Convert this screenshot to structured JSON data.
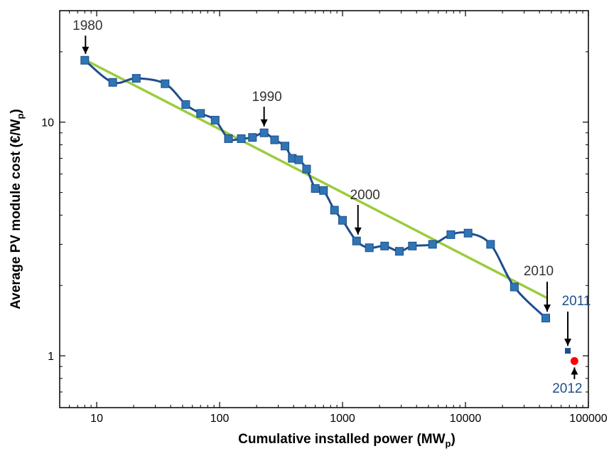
{
  "chart_data": {
    "type": "line",
    "title": "",
    "xlabel": {
      "main": "Cumulative installed power (MW",
      "sub": "p",
      "end": ")"
    },
    "ylabel": {
      "main": "Average PV module cost (€/W",
      "sub": "p",
      "end": ")"
    },
    "xscale": "log",
    "yscale": "log",
    "xlim": [
      5,
      100000
    ],
    "ylim": [
      0.6,
      30
    ],
    "x_ticks": [
      10,
      100,
      1000,
      10000,
      100000
    ],
    "x_tick_labels": [
      "10",
      "100",
      "1000",
      "10000",
      "100000"
    ],
    "y_ticks": [
      1,
      10
    ],
    "y_tick_labels": [
      "1",
      "10"
    ],
    "grid": false,
    "series": [
      {
        "color": "#1f4e8c",
        "marker_color": "#2e75b6",
        "points": [
          [
            8,
            18.4
          ],
          [
            13.5,
            14.8
          ],
          [
            21,
            15.4
          ],
          [
            36,
            14.6
          ],
          [
            53,
            11.9
          ],
          [
            70,
            10.9
          ],
          [
            92,
            10.2
          ],
          [
            118,
            8.5
          ],
          [
            150,
            8.5
          ],
          [
            185,
            8.6
          ],
          [
            230,
            9.0
          ],
          [
            280,
            8.4
          ],
          [
            340,
            7.9
          ],
          [
            390,
            7.0
          ],
          [
            440,
            6.9
          ],
          [
            510,
            6.3
          ],
          [
            600,
            5.2
          ],
          [
            700,
            5.1
          ],
          [
            860,
            4.2
          ],
          [
            1000,
            3.8
          ],
          [
            1300,
            3.1
          ],
          [
            1650,
            2.9
          ],
          [
            2200,
            2.95
          ],
          [
            2900,
            2.8
          ],
          [
            3700,
            2.95
          ],
          [
            5400,
            3.0
          ],
          [
            7600,
            3.3
          ],
          [
            10500,
            3.35
          ],
          [
            16000,
            3.0
          ],
          [
            25000,
            1.97
          ],
          [
            45000,
            1.45
          ]
        ]
      },
      {
        "color": "#9ccc3c",
        "type": "trend",
        "points": [
          [
            8,
            18.5
          ],
          [
            45000,
            1.78
          ]
        ]
      }
    ],
    "extra_points": [
      {
        "x": 68000,
        "y": 1.05,
        "color": "#1f4e8c"
      },
      {
        "x": 77000,
        "y": 0.95,
        "color": "#ff0000"
      }
    ],
    "annotations": [
      {
        "text": "1980",
        "color": "gray",
        "x": 8,
        "y": 18.4
      },
      {
        "text": "1990",
        "color": "gray",
        "x": 230,
        "y": 9.0
      },
      {
        "text": "2000",
        "color": "gray",
        "x": 1300,
        "y": 3.1
      },
      {
        "text": "2010",
        "color": "gray",
        "x": 45000,
        "y": 1.45
      },
      {
        "text": "2011",
        "color": "blue",
        "x": 68000,
        "y": 1.05
      },
      {
        "text": "2012",
        "color": "blue",
        "x": 77000,
        "y": 0.95
      }
    ]
  }
}
